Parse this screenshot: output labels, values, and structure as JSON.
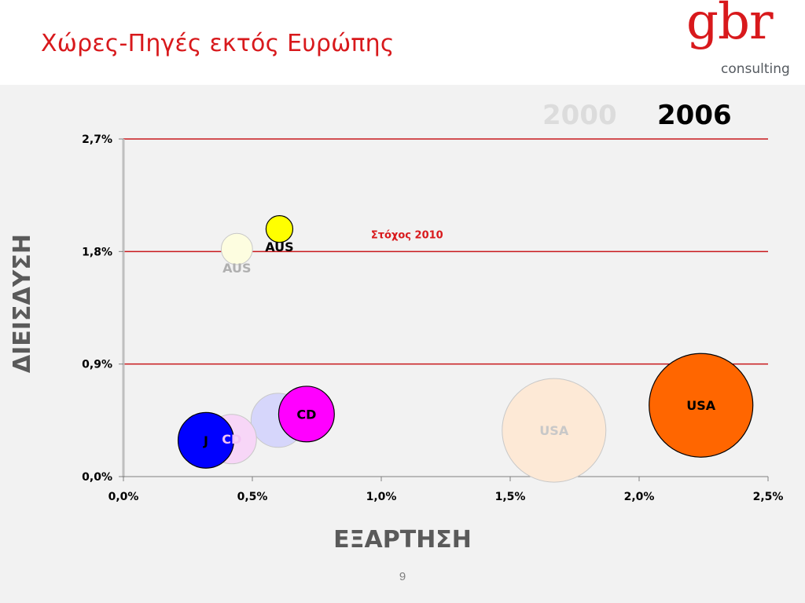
{
  "header": {
    "title": "Χώρες-Πηγές εκτός Ευρώπης",
    "logo_main": "gbr",
    "logo_sub": "consulting"
  },
  "years": {
    "previous": "2000",
    "current": "2006"
  },
  "axes": {
    "xlabel": "ΕΞΑΡΤΗΣΗ",
    "ylabel": "ΔΙΕΙΣΔΥΣΗ"
  },
  "page_number": "9",
  "colors": {
    "title": "#d8191c",
    "reference_line": "#c8191c",
    "panel": "#f2f2f2"
  },
  "chart_data": {
    "type": "scatter",
    "subtype": "bubble",
    "xlabel": "ΕΞΑΡΤΗΣΗ",
    "ylabel": "ΔΙΕΙΣΔΥΣΗ",
    "xlim": [
      0,
      2.5
    ],
    "ylim": [
      0,
      2.7
    ],
    "x_ticks": [
      "0,0%",
      "0,5%",
      "1,0%",
      "1,5%",
      "2,0%",
      "2,5%"
    ],
    "y_ticks": [
      "0,0%",
      "0,9%",
      "1,8%",
      "2,7%"
    ],
    "x_tick_values": [
      0,
      0.5,
      1.0,
      1.5,
      2.0,
      2.5
    ],
    "y_tick_values": [
      0,
      0.9,
      1.8,
      2.7
    ],
    "reference_lines": [
      0.9,
      1.8,
      2.7
    ],
    "annotations": [
      {
        "text": "Στόχος 2010",
        "x": 1.1,
        "y": 1.93
      }
    ],
    "legend": [
      "2000",
      "2006"
    ],
    "series": [
      {
        "name": "2000",
        "points": [
          {
            "label": "AUS",
            "x": 0.44,
            "y": 1.82,
            "size": 0.3,
            "color": "#fdfde0",
            "text_color": "#b0b0b0",
            "label_dx": 0.0,
            "label_dy": -0.15
          },
          {
            "label": "",
            "x": 0.6,
            "y": 0.45,
            "size": 0.9,
            "color": "#d6d6fb",
            "text_color": "#c8c8ee",
            "label_dx": 0,
            "label_dy": 0
          },
          {
            "label": "CD",
            "x": 0.42,
            "y": 0.3,
            "size": 0.75,
            "color": "#f7d6f7",
            "text_color": "#f3c4f3",
            "label_dx": 0,
            "label_dy": 0
          },
          {
            "label": "USA",
            "x": 1.67,
            "y": 0.37,
            "size": 3.3,
            "color": "#fde9d6",
            "text_color": "#c8c8c8",
            "label_dx": 0,
            "label_dy": 0
          }
        ]
      },
      {
        "name": "2006",
        "points": [
          {
            "label": "AUS",
            "x": 0.605,
            "y": 1.98,
            "size": 0.22,
            "color": "#ffff00",
            "text_color": "#000000",
            "label_dx": 0.0,
            "label_dy": -0.14
          },
          {
            "label": "CD",
            "x": 0.71,
            "y": 0.5,
            "size": 0.95,
            "color": "#ff00ff",
            "text_color": "#000000",
            "label_dx": 0,
            "label_dy": 0
          },
          {
            "label": "J",
            "x": 0.32,
            "y": 0.29,
            "size": 0.95,
            "color": "#0000ff",
            "text_color": "#000000",
            "label_dx": 0,
            "label_dy": 0
          },
          {
            "label": "USA",
            "x": 2.24,
            "y": 0.57,
            "size": 3.3,
            "color": "#ff6600",
            "text_color": "#000000",
            "label_dx": 0,
            "label_dy": 0
          }
        ]
      }
    ]
  }
}
